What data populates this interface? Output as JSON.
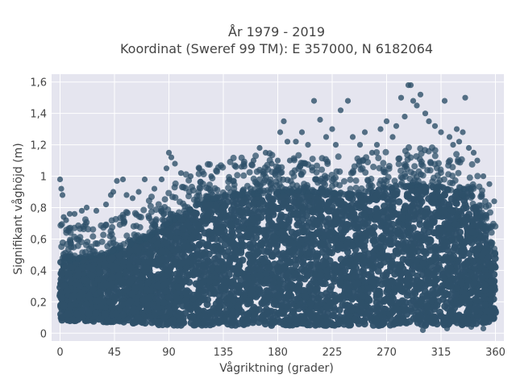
{
  "chart_data": {
    "type": "scatter",
    "title": "År 1979 - 2019",
    "subtitle": "Koordinat (Sweref 99 TM): E 357000, N 6182064",
    "xlabel": "Vågriktning (grader)",
    "ylabel": "Signifikant våghöjd (m)",
    "xlim": [
      -7,
      367
    ],
    "ylim": [
      -0.05,
      1.65
    ],
    "xticks": [
      0,
      45,
      90,
      135,
      180,
      225,
      270,
      315,
      360
    ],
    "yticks": [
      0,
      0.2,
      0.4,
      0.6,
      0.8,
      1,
      1.2,
      1.4,
      1.6
    ],
    "ytick_labels": [
      "0",
      "0,2",
      "0,4",
      "0,6",
      "0,8",
      "1",
      "1,2",
      "1,4",
      "1,6"
    ],
    "grid": true,
    "marker_color": "#2e5069",
    "background_color": "#e5e5ef",
    "envelope": {
      "x": [
        0,
        20,
        45,
        70,
        90,
        120,
        150,
        180,
        210,
        240,
        270,
        300,
        330,
        345,
        360
      ],
      "dense_upper": [
        0.45,
        0.48,
        0.52,
        0.6,
        0.7,
        0.85,
        0.88,
        0.9,
        0.9,
        0.88,
        0.92,
        0.95,
        0.9,
        0.8,
        0.5
      ],
      "lower": [
        0.08,
        0.08,
        0.07,
        0.06,
        0.05,
        0.05,
        0.05,
        0.05,
        0.05,
        0.05,
        0.05,
        0.05,
        0.05,
        0.06,
        0.08
      ]
    },
    "outliers": [
      [
        0,
        0.98
      ],
      [
        1,
        0.92
      ],
      [
        2,
        0.88
      ],
      [
        3,
        0.74
      ],
      [
        5,
        0.72
      ],
      [
        8,
        0.76
      ],
      [
        12,
        0.76
      ],
      [
        18,
        0.78
      ],
      [
        22,
        0.8
      ],
      [
        30,
        0.78
      ],
      [
        38,
        0.82
      ],
      [
        42,
        0.88
      ],
      [
        44,
        0.9
      ],
      [
        47,
        0.97
      ],
      [
        52,
        0.98
      ],
      [
        55,
        0.88
      ],
      [
        60,
        0.86
      ],
      [
        65,
        0.9
      ],
      [
        70,
        0.98
      ],
      [
        78,
        0.92
      ],
      [
        84,
        0.98
      ],
      [
        88,
        1.05
      ],
      [
        90,
        1.15
      ],
      [
        92,
        1.12
      ],
      [
        95,
        1.08
      ],
      [
        100,
        1.02
      ],
      [
        108,
        1.0
      ],
      [
        115,
        1.05
      ],
      [
        125,
        1.0
      ],
      [
        140,
        0.98
      ],
      [
        150,
        1.06
      ],
      [
        160,
        1.1
      ],
      [
        165,
        1.18
      ],
      [
        170,
        1.15
      ],
      [
        175,
        1.08
      ],
      [
        180,
        1.1
      ],
      [
        182,
        1.28
      ],
      [
        185,
        1.35
      ],
      [
        188,
        1.22
      ],
      [
        190,
        1.1
      ],
      [
        195,
        1.22
      ],
      [
        200,
        1.28
      ],
      [
        205,
        1.2
      ],
      [
        210,
        1.48
      ],
      [
        215,
        1.36
      ],
      [
        220,
        1.25
      ],
      [
        225,
        1.3
      ],
      [
        228,
        1.2
      ],
      [
        232,
        1.42
      ],
      [
        238,
        1.48
      ],
      [
        242,
        1.25
      ],
      [
        248,
        1.2
      ],
      [
        252,
        1.28
      ],
      [
        258,
        1.15
      ],
      [
        262,
        1.2
      ],
      [
        265,
        1.3
      ],
      [
        270,
        1.35
      ],
      [
        275,
        1.25
      ],
      [
        278,
        1.32
      ],
      [
        282,
        1.5
      ],
      [
        285,
        1.38
      ],
      [
        288,
        1.58
      ],
      [
        290,
        1.58
      ],
      [
        292,
        1.48
      ],
      [
        295,
        1.45
      ],
      [
        298,
        1.52
      ],
      [
        302,
        1.4
      ],
      [
        305,
        1.35
      ],
      [
        310,
        1.32
      ],
      [
        315,
        1.28
      ],
      [
        318,
        1.48
      ],
      [
        322,
        1.25
      ],
      [
        325,
        1.2
      ],
      [
        328,
        1.3
      ],
      [
        330,
        1.22
      ],
      [
        333,
        1.28
      ],
      [
        335,
        1.5
      ],
      [
        338,
        1.18
      ],
      [
        342,
        1.15
      ],
      [
        345,
        1.1
      ],
      [
        350,
        1.0
      ],
      [
        355,
        0.95
      ],
      [
        359,
        0.84
      ],
      [
        300,
        0.02
      ],
      [
        320,
        0.03
      ],
      [
        350,
        0.03
      ],
      [
        340,
        0.04
      ]
    ]
  }
}
